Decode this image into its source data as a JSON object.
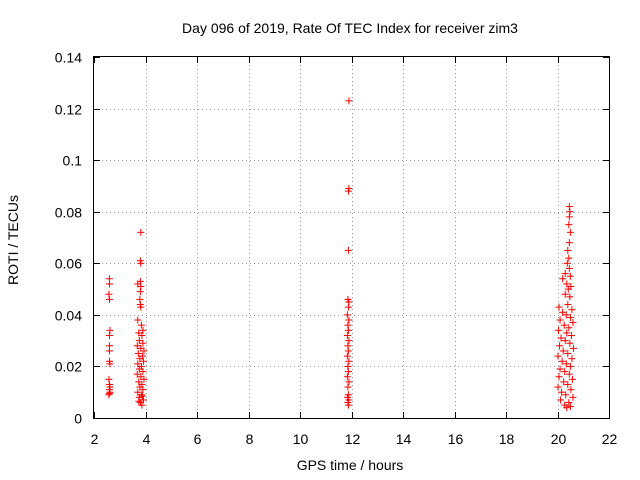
{
  "chart_data": {
    "type": "scatter",
    "title": "Day 096 of 2019, Rate Of TEC Index for receiver zim3",
    "xlabel": "GPS time / hours",
    "ylabel": "ROTI / TECUs",
    "xlim": [
      2,
      22
    ],
    "ylim": [
      0,
      0.14
    ],
    "x_ticks": [
      "2",
      "4",
      "6",
      "8",
      "10",
      "12",
      "14",
      "16",
      "18",
      "20",
      "22"
    ],
    "y_ticks": [
      "0",
      "0.02",
      "0.04",
      "0.06",
      "0.08",
      "0.1",
      "0.12",
      "0.14"
    ],
    "grid": true,
    "marker": "+",
    "color": "#ff0000",
    "series": [
      {
        "points": [
          [
            2.6,
            0.054
          ],
          [
            2.6,
            0.052
          ],
          [
            2.58,
            0.048
          ],
          [
            2.6,
            0.046
          ],
          [
            2.62,
            0.034
          ],
          [
            2.6,
            0.032
          ],
          [
            2.6,
            0.028
          ],
          [
            2.6,
            0.026
          ],
          [
            2.6,
            0.022
          ],
          [
            2.62,
            0.021
          ],
          [
            2.58,
            0.015
          ],
          [
            2.6,
            0.013
          ],
          [
            2.62,
            0.012
          ],
          [
            2.6,
            0.011
          ],
          [
            2.62,
            0.01
          ],
          [
            2.58,
            0.009
          ],
          [
            2.6,
            0.0095
          ],
          [
            3.82,
            0.072
          ],
          [
            3.8,
            0.061
          ],
          [
            3.82,
            0.06
          ],
          [
            3.7,
            0.052
          ],
          [
            3.8,
            0.053
          ],
          [
            3.82,
            0.051
          ],
          [
            3.8,
            0.049
          ],
          [
            3.78,
            0.046
          ],
          [
            3.8,
            0.044
          ],
          [
            3.82,
            0.043
          ],
          [
            3.7,
            0.038
          ],
          [
            3.84,
            0.036
          ],
          [
            3.9,
            0.034
          ],
          [
            3.74,
            0.033
          ],
          [
            3.86,
            0.032
          ],
          [
            3.76,
            0.03
          ],
          [
            3.9,
            0.029
          ],
          [
            3.68,
            0.028
          ],
          [
            3.82,
            0.027
          ],
          [
            3.94,
            0.026
          ],
          [
            3.72,
            0.025
          ],
          [
            3.88,
            0.024
          ],
          [
            3.78,
            0.023
          ],
          [
            3.92,
            0.022
          ],
          [
            3.7,
            0.021
          ],
          [
            3.84,
            0.02
          ],
          [
            3.76,
            0.019
          ],
          [
            3.9,
            0.018
          ],
          [
            3.68,
            0.017
          ],
          [
            3.82,
            0.016
          ],
          [
            3.94,
            0.015
          ],
          [
            3.74,
            0.014
          ],
          [
            3.86,
            0.013
          ],
          [
            3.78,
            0.012
          ],
          [
            3.9,
            0.011
          ],
          [
            3.7,
            0.01
          ],
          [
            3.84,
            0.009
          ],
          [
            3.76,
            0.008
          ],
          [
            3.92,
            0.007
          ],
          [
            3.8,
            0.006
          ],
          [
            3.86,
            0.005
          ],
          [
            3.74,
            0.0065
          ],
          [
            3.88,
            0.0085
          ],
          [
            11.9,
            0.123
          ],
          [
            11.88,
            0.088
          ],
          [
            11.9,
            0.089
          ],
          [
            11.88,
            0.065
          ],
          [
            11.86,
            0.046
          ],
          [
            11.9,
            0.045
          ],
          [
            11.88,
            0.043
          ],
          [
            11.84,
            0.04
          ],
          [
            11.9,
            0.038
          ],
          [
            11.86,
            0.036
          ],
          [
            11.88,
            0.034
          ],
          [
            11.84,
            0.032
          ],
          [
            11.9,
            0.03
          ],
          [
            11.86,
            0.028
          ],
          [
            11.88,
            0.026
          ],
          [
            11.84,
            0.024
          ],
          [
            11.9,
            0.022
          ],
          [
            11.86,
            0.02
          ],
          [
            11.88,
            0.018
          ],
          [
            11.84,
            0.016
          ],
          [
            11.9,
            0.014
          ],
          [
            11.86,
            0.012
          ],
          [
            11.88,
            0.009
          ],
          [
            11.84,
            0.008
          ],
          [
            11.9,
            0.007
          ],
          [
            11.86,
            0.006
          ],
          [
            11.88,
            0.005
          ],
          [
            20.46,
            0.082
          ],
          [
            20.48,
            0.08
          ],
          [
            20.46,
            0.078
          ],
          [
            20.44,
            0.075
          ],
          [
            20.5,
            0.072
          ],
          [
            20.46,
            0.068
          ],
          [
            20.4,
            0.065
          ],
          [
            20.44,
            0.062
          ],
          [
            20.38,
            0.06
          ],
          [
            20.46,
            0.058
          ],
          [
            20.3,
            0.056
          ],
          [
            20.5,
            0.055
          ],
          [
            20.2,
            0.054
          ],
          [
            20.36,
            0.052
          ],
          [
            20.52,
            0.051
          ],
          [
            20.42,
            0.05
          ],
          [
            20.3,
            0.048
          ],
          [
            20.48,
            0.047
          ],
          [
            20.06,
            0.043
          ],
          [
            20.4,
            0.044
          ],
          [
            20.56,
            0.042
          ],
          [
            20.2,
            0.041
          ],
          [
            20.34,
            0.04
          ],
          [
            20.5,
            0.039
          ],
          [
            20.1,
            0.038
          ],
          [
            20.6,
            0.037
          ],
          [
            20.26,
            0.036
          ],
          [
            20.44,
            0.035
          ],
          [
            20.04,
            0.034
          ],
          [
            20.36,
            0.033
          ],
          [
            20.54,
            0.032
          ],
          [
            20.14,
            0.031
          ],
          [
            20.3,
            0.03
          ],
          [
            20.48,
            0.029
          ],
          [
            20.08,
            0.028
          ],
          [
            20.62,
            0.027
          ],
          [
            20.22,
            0.026
          ],
          [
            20.4,
            0.025
          ],
          [
            20.02,
            0.024
          ],
          [
            20.56,
            0.023
          ],
          [
            20.18,
            0.022
          ],
          [
            20.34,
            0.021
          ],
          [
            20.5,
            0.02
          ],
          [
            20.1,
            0.019
          ],
          [
            20.28,
            0.018
          ],
          [
            20.46,
            0.017
          ],
          [
            20.06,
            0.016
          ],
          [
            20.58,
            0.015
          ],
          [
            20.24,
            0.014
          ],
          [
            20.4,
            0.013
          ],
          [
            20.02,
            0.012
          ],
          [
            20.52,
            0.011
          ],
          [
            20.16,
            0.01
          ],
          [
            20.32,
            0.009
          ],
          [
            20.6,
            0.008
          ],
          [
            20.12,
            0.007
          ],
          [
            20.44,
            0.006
          ],
          [
            20.28,
            0.005
          ],
          [
            20.36,
            0.004
          ],
          [
            20.5,
            0.0045
          ]
        ]
      }
    ]
  }
}
